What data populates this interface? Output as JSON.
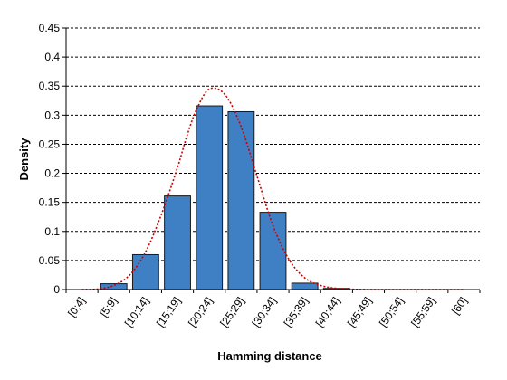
{
  "chart_data": {
    "type": "bar",
    "xlabel": "Hamming distance",
    "ylabel": "Density",
    "ylim": [
      0,
      0.45
    ],
    "yticks": [
      0,
      0.05,
      0.1,
      0.15,
      0.2,
      0.25,
      0.3,
      0.35,
      0.4,
      0.45
    ],
    "ytick_labels": [
      "0",
      "0.05",
      "0.1",
      "0.15",
      "0.2",
      "0.25",
      "0.3",
      "0.35",
      "0.4",
      "0.45"
    ],
    "categories": [
      "[0;4]",
      "[5;9]",
      "[10;14]",
      "[15;19]",
      "[20;24]",
      "[25;29]",
      "[30;34]",
      "[35;39]",
      "[40;44]",
      "[45;49]",
      "[50;54]",
      "[55;59]",
      "[60]"
    ],
    "values": [
      0.0,
      0.01,
      0.06,
      0.161,
      0.316,
      0.306,
      0.133,
      0.011,
      0.002,
      0.0,
      0.0,
      0.0,
      0.0
    ],
    "grid": true,
    "bar_color": "#3F7FC4",
    "curve": {
      "style": "dotted",
      "color": "#CC0000",
      "x": [
        0,
        0.5,
        1,
        1.5,
        2,
        2.5,
        3,
        3.3,
        3.6,
        4,
        4.5,
        5,
        5.5,
        6,
        6.5,
        7,
        7.5,
        8,
        8.5,
        9,
        10,
        11,
        12
      ],
      "y": [
        0.0,
        0.001,
        0.007,
        0.025,
        0.065,
        0.13,
        0.21,
        0.265,
        0.31,
        0.345,
        0.335,
        0.28,
        0.195,
        0.11,
        0.052,
        0.02,
        0.007,
        0.002,
        0.0005,
        0.0,
        0.0,
        0.0,
        0.0
      ]
    }
  }
}
